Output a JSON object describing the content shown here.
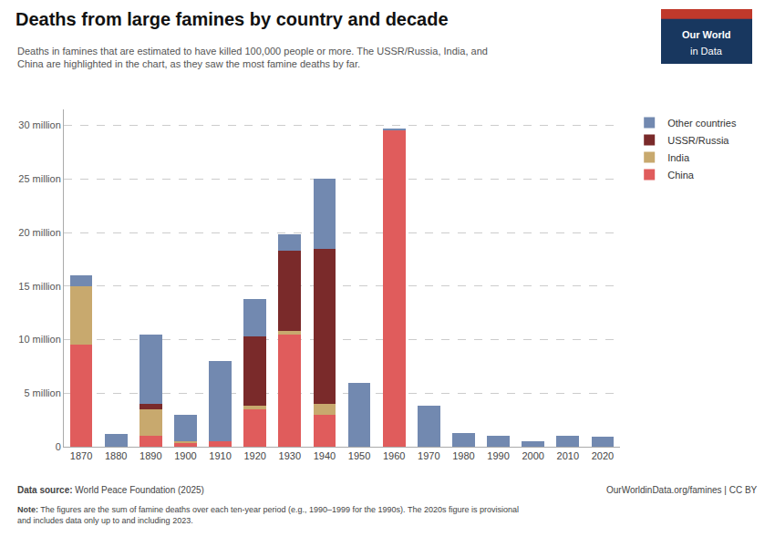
{
  "chart_data": {
    "type": "bar",
    "stacked": true,
    "title": "Deaths from large famines by country and decade",
    "subtitle": "Deaths in famines that are estimated to have killed 100,000 people or more. The USSR/Russia, India, and\nChina are highlighted in the chart, as they saw the most famine deaths by far.",
    "categories": [
      "1870",
      "1880",
      "1890",
      "1900",
      "1910",
      "1920",
      "1930",
      "1940",
      "1950",
      "1960",
      "1970",
      "1980",
      "1990",
      "2000",
      "2010",
      "2020"
    ],
    "series": [
      {
        "name": "China",
        "color": "#e05c5c",
        "values": [
          9500000,
          0,
          1000000,
          300000,
          500000,
          3500000,
          10500000,
          3000000,
          0,
          29500000,
          0,
          0,
          0,
          0,
          0,
          0
        ]
      },
      {
        "name": "India",
        "color": "#c8a96e",
        "values": [
          5500000,
          0,
          2500000,
          200000,
          0,
          300000,
          300000,
          1000000,
          0,
          0,
          0,
          0,
          0,
          0,
          0,
          0
        ]
      },
      {
        "name": "USSR/Russia",
        "color": "#7a2a2a",
        "values": [
          0,
          0,
          500000,
          0,
          0,
          6500000,
          7500000,
          14500000,
          0,
          0,
          0,
          0,
          0,
          0,
          0,
          0
        ]
      },
      {
        "name": "Other countries",
        "color": "#7289b0",
        "values": [
          1000000,
          1200000,
          6500000,
          2500000,
          7500000,
          3500000,
          1500000,
          6500000,
          6000000,
          200000,
          3800000,
          1300000,
          1000000,
          500000,
          1000000,
          900000
        ]
      }
    ],
    "ylim": [
      0,
      31500000
    ],
    "yticks": [
      0,
      {
        "value": 5000000,
        "label": "5 million"
      },
      {
        "value": 10000000,
        "label": "10 million"
      },
      {
        "value": 15000000,
        "label": "15 million"
      },
      {
        "value": 20000000,
        "label": "20 million"
      },
      {
        "value": 25000000,
        "label": "25 million"
      },
      {
        "value": 30000000,
        "label": "30 million"
      }
    ],
    "grid": true,
    "legend": "upper right",
    "annotations": [
      "Data source: World Peace Foundation (2025)",
      "OurWorldinData.org/famines | CC BY",
      "Note: The figures are the sum of famine deaths over each ten-year period (e.g., 1990–1999 for the 1990s). The 2020s figure is provisional\nand includes data only up to and including 2023.",
      "Our World",
      "in Data"
    ]
  }
}
